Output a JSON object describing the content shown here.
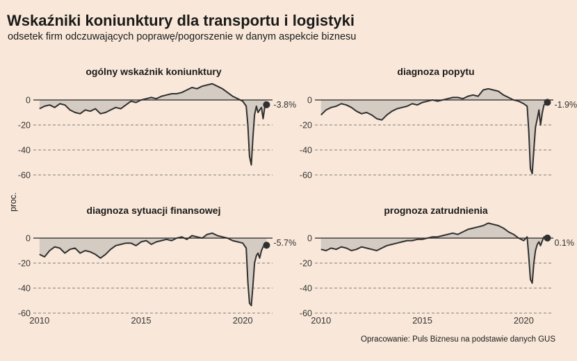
{
  "title": "Wskaźniki koniunktury dla transportu i logistyki",
  "subtitle": "odsetek firm odczuwających poprawę/pogorszenie w danym aspekcie biznesu",
  "ylabel": "proc.",
  "caption": "Opracowanie: Puls Biznesu na podstawie danych GUS",
  "chart_data": [
    {
      "type": "area",
      "title": "ogólny wskaźnik koniunktury",
      "ylim": [
        -62,
        15
      ],
      "xlim": [
        2009.7,
        2021.6
      ],
      "yticks": [
        0,
        -20,
        -40,
        -60
      ],
      "xticks": [
        2010,
        2015,
        2020
      ],
      "end_label": "-3.8%",
      "x": [
        2010.0,
        2010.25,
        2010.5,
        2010.75,
        2011.0,
        2011.25,
        2011.5,
        2011.75,
        2012.0,
        2012.25,
        2012.5,
        2012.75,
        2013.0,
        2013.25,
        2013.5,
        2013.75,
        2014.0,
        2014.25,
        2014.5,
        2014.75,
        2015.0,
        2015.25,
        2015.5,
        2015.75,
        2016.0,
        2016.25,
        2016.5,
        2016.75,
        2017.0,
        2017.25,
        2017.5,
        2017.75,
        2018.0,
        2018.25,
        2018.5,
        2018.75,
        2019.0,
        2019.25,
        2019.5,
        2019.75,
        2020.0,
        2020.17,
        2020.25,
        2020.33,
        2020.42,
        2020.5,
        2020.58,
        2020.67,
        2020.75,
        2020.83,
        2020.92,
        2021.0,
        2021.08,
        2021.17
      ],
      "values": [
        -7,
        -5,
        -4,
        -6,
        -3,
        -4,
        -8,
        -10,
        -11,
        -8,
        -9,
        -7,
        -11,
        -10,
        -8,
        -6,
        -7,
        -4,
        -1,
        -2,
        0,
        1,
        2,
        1,
        3,
        4,
        5,
        5,
        6,
        8,
        10,
        9,
        11,
        12,
        13,
        11,
        9,
        6,
        3,
        1,
        -1,
        -5,
        -20,
        -45,
        -52,
        -30,
        -12,
        -5,
        -10,
        -8,
        -6,
        -15,
        -6,
        -3.8
      ]
    },
    {
      "type": "area",
      "title": "diagnoza popytu",
      "ylim": [
        -62,
        15
      ],
      "xlim": [
        2009.7,
        2021.6
      ],
      "yticks": [
        0,
        -20,
        -40,
        -60
      ],
      "xticks": [
        2010,
        2015,
        2020
      ],
      "end_label": "-1.9%",
      "x": [
        2010.0,
        2010.25,
        2010.5,
        2010.75,
        2011.0,
        2011.25,
        2011.5,
        2011.75,
        2012.0,
        2012.25,
        2012.5,
        2012.75,
        2013.0,
        2013.25,
        2013.5,
        2013.75,
        2014.0,
        2014.25,
        2014.5,
        2014.75,
        2015.0,
        2015.25,
        2015.5,
        2015.75,
        2016.0,
        2016.25,
        2016.5,
        2016.75,
        2017.0,
        2017.25,
        2017.5,
        2017.75,
        2018.0,
        2018.25,
        2018.5,
        2018.75,
        2019.0,
        2019.25,
        2019.5,
        2019.75,
        2020.0,
        2020.17,
        2020.25,
        2020.33,
        2020.42,
        2020.5,
        2020.58,
        2020.67,
        2020.75,
        2020.83,
        2020.92,
        2021.0,
        2021.08,
        2021.17
      ],
      "values": [
        -12,
        -8,
        -6,
        -5,
        -3,
        -4,
        -6,
        -9,
        -11,
        -10,
        -12,
        -15,
        -16,
        -12,
        -9,
        -7,
        -6,
        -5,
        -3,
        -4,
        -2,
        -1,
        0,
        -1,
        0,
        1,
        2,
        2,
        1,
        3,
        4,
        3,
        8,
        9,
        8,
        7,
        4,
        2,
        0,
        -1,
        -3,
        -5,
        -25,
        -55,
        -59,
        -40,
        -22,
        -15,
        -8,
        -20,
        -10,
        -4,
        -3,
        -1.9
      ]
    },
    {
      "type": "area",
      "title": "diagnoza sytuacji finansowej",
      "ylim": [
        -62,
        15
      ],
      "xlim": [
        2009.7,
        2021.6
      ],
      "yticks": [
        0,
        -20,
        -40,
        -60
      ],
      "xticks": [
        2010,
        2015,
        2020
      ],
      "end_label": "-5.7%",
      "x": [
        2010.0,
        2010.25,
        2010.5,
        2010.75,
        2011.0,
        2011.25,
        2011.5,
        2011.75,
        2012.0,
        2012.25,
        2012.5,
        2012.75,
        2013.0,
        2013.25,
        2013.5,
        2013.75,
        2014.0,
        2014.25,
        2014.5,
        2014.75,
        2015.0,
        2015.25,
        2015.5,
        2015.75,
        2016.0,
        2016.25,
        2016.5,
        2016.75,
        2017.0,
        2017.25,
        2017.5,
        2017.75,
        2018.0,
        2018.25,
        2018.5,
        2018.75,
        2019.0,
        2019.25,
        2019.5,
        2019.75,
        2020.0,
        2020.17,
        2020.25,
        2020.33,
        2020.42,
        2020.5,
        2020.58,
        2020.67,
        2020.75,
        2020.83,
        2020.92,
        2021.0,
        2021.08,
        2021.17
      ],
      "values": [
        -13,
        -15,
        -10,
        -7,
        -8,
        -12,
        -9,
        -8,
        -12,
        -10,
        -11,
        -13,
        -16,
        -13,
        -9,
        -6,
        -5,
        -4,
        -4,
        -6,
        -3,
        -2,
        -5,
        -3,
        -2,
        -1,
        -2,
        0,
        1,
        -1,
        2,
        1,
        0,
        3,
        4,
        2,
        1,
        0,
        -2,
        -3,
        -4,
        -8,
        -35,
        -52,
        -54,
        -38,
        -20,
        -14,
        -12,
        -16,
        -10,
        -7,
        -6,
        -5.7
      ]
    },
    {
      "type": "area",
      "title": "prognoza zatrudnienia",
      "ylim": [
        -62,
        15
      ],
      "xlim": [
        2009.7,
        2021.6
      ],
      "yticks": [
        0,
        -20,
        -40,
        -60
      ],
      "xticks": [
        2010,
        2015,
        2020
      ],
      "end_label": "0.1%",
      "x": [
        2010.0,
        2010.25,
        2010.5,
        2010.75,
        2011.0,
        2011.25,
        2011.5,
        2011.75,
        2012.0,
        2012.25,
        2012.5,
        2012.75,
        2013.0,
        2013.25,
        2013.5,
        2013.75,
        2014.0,
        2014.25,
        2014.5,
        2014.75,
        2015.0,
        2015.25,
        2015.5,
        2015.75,
        2016.0,
        2016.25,
        2016.5,
        2016.75,
        2017.0,
        2017.25,
        2017.5,
        2017.75,
        2018.0,
        2018.25,
        2018.5,
        2018.75,
        2019.0,
        2019.25,
        2019.5,
        2019.75,
        2020.0,
        2020.17,
        2020.25,
        2020.33,
        2020.42,
        2020.5,
        2020.58,
        2020.67,
        2020.75,
        2020.83,
        2020.92,
        2021.0,
        2021.08,
        2021.17
      ],
      "values": [
        -9,
        -10,
        -8,
        -9,
        -7,
        -8,
        -10,
        -9,
        -7,
        -8,
        -9,
        -10,
        -8,
        -6,
        -5,
        -4,
        -3,
        -2,
        -2,
        -1,
        -1,
        0,
        1,
        1,
        2,
        3,
        4,
        3,
        5,
        7,
        8,
        9,
        10,
        12,
        11,
        10,
        8,
        5,
        3,
        0,
        -2,
        1,
        -15,
        -33,
        -36,
        -20,
        -10,
        -5,
        -3,
        -6,
        -2,
        1,
        0,
        0.1
      ]
    }
  ]
}
